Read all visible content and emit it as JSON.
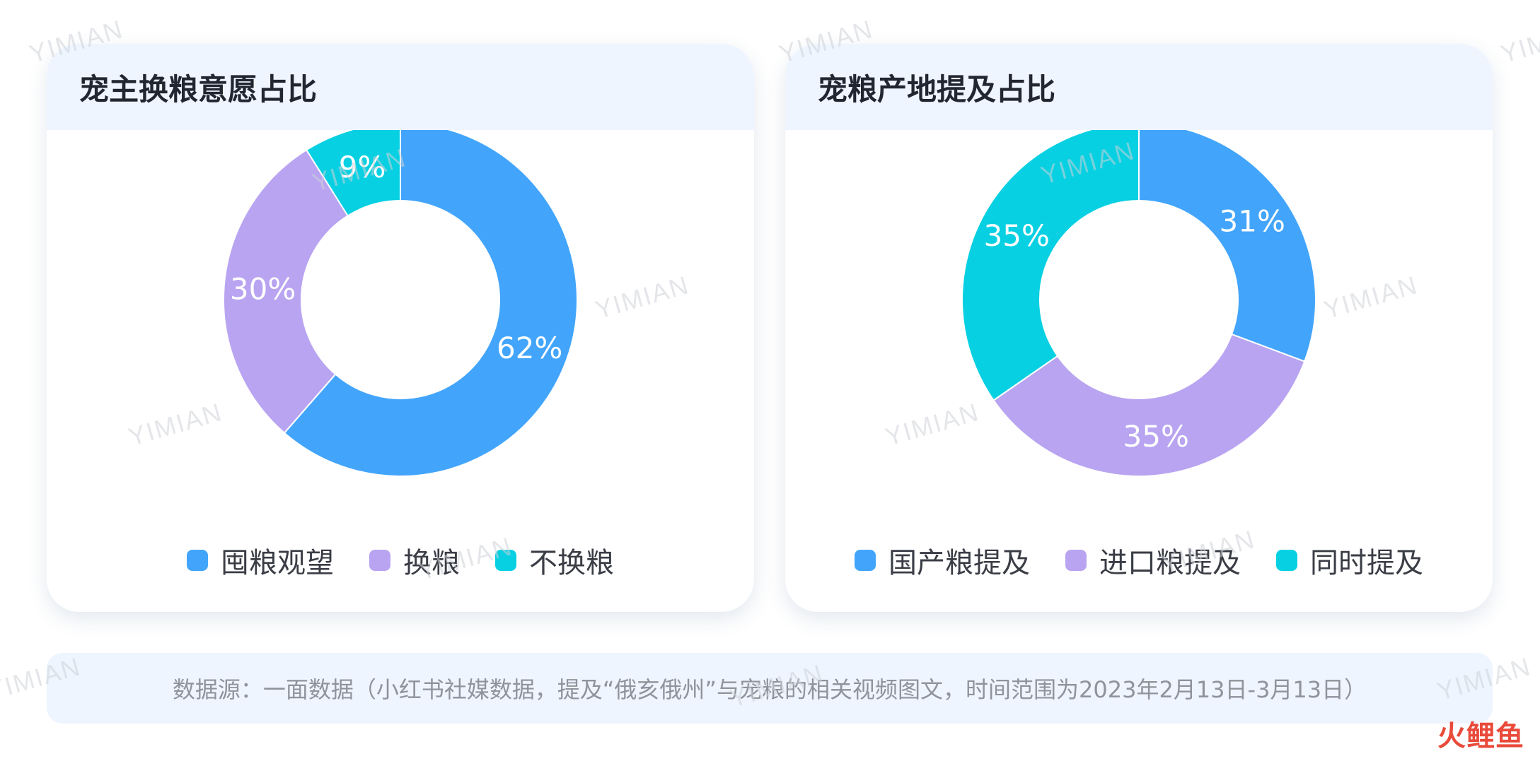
{
  "colors": {
    "blue": "#42a5fb",
    "purple": "#b8a4f1",
    "cyan": "#06d0e2",
    "card_header_bg": "#eef5ff",
    "footer_bg": "#eef5ff",
    "brand": "#e94a3a"
  },
  "watermark": {
    "text": "YIMIAN"
  },
  "left_card": {
    "title": "宠主换粮意愿占比"
  },
  "right_card": {
    "title": "宠粮产地提及占比"
  },
  "chart_data": [
    {
      "type": "pie",
      "variant": "donut",
      "title": "宠主换粮意愿占比",
      "categories": [
        "囤粮观望",
        "换粮",
        "不换粮"
      ],
      "values": [
        62,
        30,
        9
      ],
      "labels": [
        "62%",
        "30%",
        "9%"
      ],
      "colors": [
        "#42a5fb",
        "#b8a4f1",
        "#06d0e2"
      ],
      "legend": "bottom"
    },
    {
      "type": "pie",
      "variant": "donut",
      "title": "宠粮产地提及占比",
      "categories": [
        "国产粮提及",
        "进口粮提及",
        "同时提及"
      ],
      "values": [
        31,
        35,
        35
      ],
      "labels": [
        "31%",
        "35%",
        "35%"
      ],
      "colors": [
        "#42a5fb",
        "#b8a4f1",
        "#06d0e2"
      ],
      "legend": "bottom"
    }
  ],
  "footer": {
    "text": "数据源：一面数据（小红书社媒数据，提及“俄亥俄州”与宠粮的相关视频图文，时间范围为2023年2月13日-3月13日）"
  },
  "brand": {
    "text": "火鲤鱼"
  }
}
